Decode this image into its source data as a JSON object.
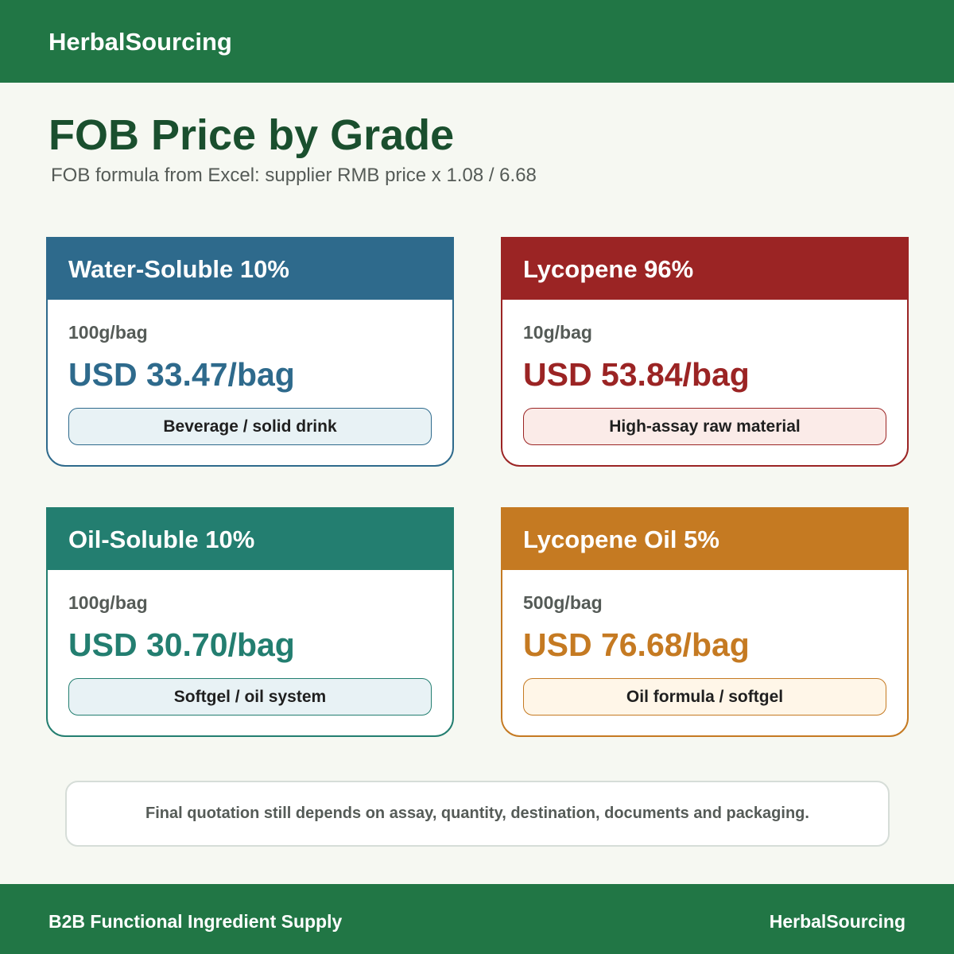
{
  "header": {
    "brand": "HerbalSourcing"
  },
  "page": {
    "title": "FOB Price by Grade",
    "subtitle": "FOB formula from Excel: supplier RMB price x 1.08 / 6.68"
  },
  "cards": [
    {
      "title": "Water-Soluble 10%",
      "pack": "100g/bag",
      "price": "USD 33.47/bag",
      "use": "Beverage / solid drink",
      "color": "#2e6a8c"
    },
    {
      "title": "Lycopene 96%",
      "pack": "10g/bag",
      "price": "USD 53.84/bag",
      "use": "High-assay raw material",
      "color": "#9b2424"
    },
    {
      "title": "Oil-Soluble 10%",
      "pack": "100g/bag",
      "price": "USD 30.70/bag",
      "use": "Softgel / oil system",
      "color": "#237e70"
    },
    {
      "title": "Lycopene Oil 5%",
      "pack": "500g/bag",
      "price": "USD 76.68/bag",
      "use": "Oil formula / softgel",
      "color": "#c57a22"
    }
  ],
  "note": {
    "text": "Final quotation still depends on assay, quantity, destination, documents and packaging."
  },
  "footer": {
    "tagline": "B2B Functional Ingredient Supply",
    "brand": "HerbalSourcing"
  },
  "colors": {
    "brand_green": "#217645",
    "title_green": "#1a4f2e"
  }
}
